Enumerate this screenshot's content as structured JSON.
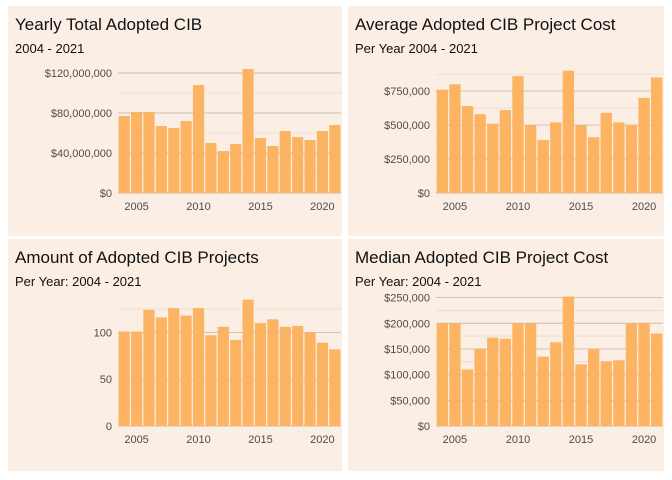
{
  "chart_data": [
    {
      "type": "bar",
      "title": "Yearly Total Adopted CIB",
      "subtitle": "2004 - 2021",
      "xlabel": "",
      "ylabel": "",
      "x": [
        2004,
        2005,
        2006,
        2007,
        2008,
        2009,
        2010,
        2011,
        2012,
        2013,
        2014,
        2015,
        2016,
        2017,
        2018,
        2019,
        2020,
        2021
      ],
      "values": [
        77000000,
        81000000,
        81000000,
        67000000,
        65000000,
        72000000,
        108000000,
        50000000,
        42000000,
        49000000,
        124000000,
        55000000,
        47000000,
        62000000,
        56000000,
        53000000,
        62000000,
        68000000
      ],
      "ylim": [
        0,
        125000000
      ],
      "yticks": [
        0,
        40000000,
        80000000,
        120000000
      ],
      "ytick_labels": [
        "$0",
        "$40,000,000",
        "$80,000,000",
        "$120,000,000"
      ],
      "xticks": [
        2005,
        2010,
        2015,
        2020
      ],
      "xtick_labels": [
        "2005",
        "2010",
        "2015",
        "2020"
      ],
      "color": "#fdb462"
    },
    {
      "type": "bar",
      "title": "Average Adopted CIB Project Cost",
      "subtitle": "Per Year 2004 - 2021",
      "xlabel": "",
      "ylabel": "",
      "x": [
        2004,
        2005,
        2006,
        2007,
        2008,
        2009,
        2010,
        2011,
        2012,
        2013,
        2014,
        2015,
        2016,
        2017,
        2018,
        2019,
        2020,
        2021
      ],
      "values": [
        760000,
        800000,
        640000,
        580000,
        510000,
        610000,
        860000,
        500000,
        390000,
        520000,
        900000,
        500000,
        410000,
        590000,
        520000,
        500000,
        700000,
        850000
      ],
      "ylim": [
        0,
        920000
      ],
      "yticks": [
        0,
        250000,
        500000,
        750000
      ],
      "ytick_labels": [
        "$0",
        "$250,000",
        "$500,000",
        "$750,000"
      ],
      "xticks": [
        2005,
        2010,
        2015,
        2020
      ],
      "xtick_labels": [
        "2005",
        "2010",
        "2015",
        "2020"
      ],
      "color": "#fdb462"
    },
    {
      "type": "bar",
      "title": "Amount of Adopted CIB Projects",
      "subtitle": "Per Year: 2004 - 2021",
      "xlabel": "",
      "ylabel": "",
      "x": [
        2004,
        2005,
        2006,
        2007,
        2008,
        2009,
        2010,
        2011,
        2012,
        2013,
        2014,
        2015,
        2016,
        2017,
        2018,
        2019,
        2020,
        2021
      ],
      "values": [
        101,
        101,
        124,
        116,
        126,
        118,
        126,
        97,
        106,
        92,
        135,
        110,
        114,
        106,
        107,
        100,
        89,
        82
      ],
      "ylim": [
        0,
        140
      ],
      "yticks": [
        0,
        50,
        100
      ],
      "ytick_labels": [
        "0",
        "50",
        "100"
      ],
      "xticks": [
        2005,
        2010,
        2015,
        2020
      ],
      "xtick_labels": [
        "2005",
        "2010",
        "2015",
        "2020"
      ],
      "color": "#fdb462"
    },
    {
      "type": "bar",
      "title": "Median Adopted CIB Project Cost",
      "subtitle": "Per Year: 2004 - 2021",
      "xlabel": "",
      "ylabel": "",
      "x": [
        2004,
        2005,
        2006,
        2007,
        2008,
        2009,
        2010,
        2011,
        2012,
        2013,
        2014,
        2015,
        2016,
        2017,
        2018,
        2019,
        2020,
        2021
      ],
      "values": [
        200000,
        200000,
        110000,
        150000,
        172000,
        170000,
        200000,
        200000,
        135000,
        163000,
        252000,
        120000,
        150000,
        126000,
        128000,
        200000,
        200000,
        180000
      ],
      "ylim": [
        0,
        255000
      ],
      "yticks": [
        0,
        50000,
        100000,
        150000,
        200000,
        250000
      ],
      "ytick_labels": [
        "$0",
        "$50,000",
        "$100,000",
        "$150,000",
        "$200,000",
        "$250,000"
      ],
      "xticks": [
        2005,
        2010,
        2015,
        2020
      ],
      "xtick_labels": [
        "2005",
        "2010",
        "2015",
        "2020"
      ],
      "color": "#fdb462"
    }
  ]
}
